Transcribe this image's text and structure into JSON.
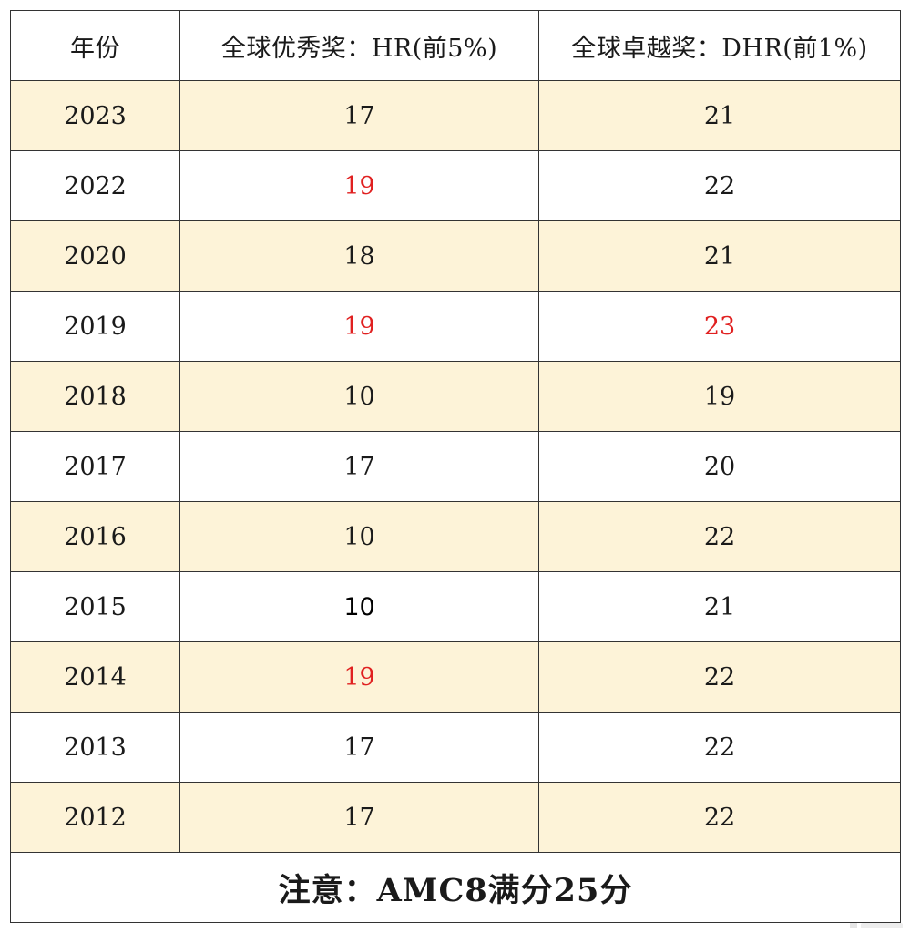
{
  "table": {
    "headers": {
      "year": "年份",
      "hr": "全球优秀奖：HR(前5%)",
      "dhr": "全球卓越奖：DHR(前1%)"
    },
    "rows": [
      {
        "year": "2023",
        "hr": "17",
        "dhr": "21",
        "hr_style": "normal",
        "dhr_style": "normal"
      },
      {
        "year": "2022",
        "hr": "19",
        "dhr": "22",
        "hr_style": "red",
        "dhr_style": "normal"
      },
      {
        "year": "2020",
        "hr": "18",
        "dhr": "21",
        "hr_style": "normal",
        "dhr_style": "normal"
      },
      {
        "year": "2019",
        "hr": "19",
        "dhr": "23",
        "hr_style": "red",
        "dhr_style": "red"
      },
      {
        "year": "2018",
        "hr": "10",
        "dhr": "19",
        "hr_style": "normal",
        "dhr_style": "normal"
      },
      {
        "year": "2017",
        "hr": "17",
        "dhr": "20",
        "hr_style": "normal",
        "dhr_style": "normal"
      },
      {
        "year": "2016",
        "hr": "10",
        "dhr": "22",
        "hr_style": "normal",
        "dhr_style": "normal"
      },
      {
        "year": "2015",
        "hr": "10",
        "dhr": "21",
        "hr_style": "bold",
        "dhr_style": "normal"
      },
      {
        "year": "2014",
        "hr": "19",
        "dhr": "22",
        "hr_style": "red",
        "dhr_style": "normal"
      },
      {
        "year": "2013",
        "hr": "17",
        "dhr": "22",
        "hr_style": "normal",
        "dhr_style": "normal"
      },
      {
        "year": "2012",
        "hr": "17",
        "dhr": "22",
        "hr_style": "normal",
        "dhr_style": "normal"
      }
    ],
    "note": "注意：AMC8满分25分"
  },
  "colors": {
    "highlight_red": "#e02020",
    "row_tint": "#fdf3d8",
    "border": "#333333"
  }
}
